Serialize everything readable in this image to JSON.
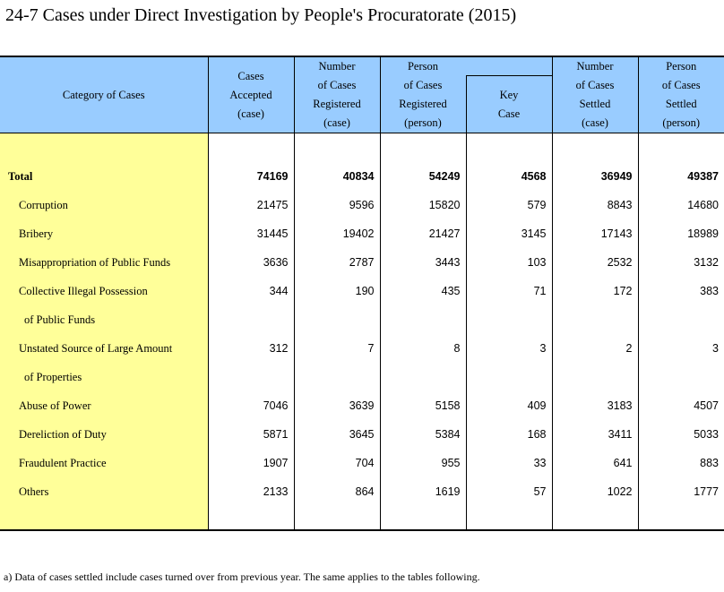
{
  "title": "24-7  Cases under Direct Investigation by People's Procuratorate (2015)",
  "header": {
    "category": "Category of Cases",
    "cases_accepted": [
      "Cases",
      "Accepted",
      "(case)"
    ],
    "cases_registered": [
      "Number",
      "of Cases",
      "Registered",
      "(case)"
    ],
    "persons_registered": [
      "Person",
      "of Cases",
      "Registered",
      "(person)"
    ],
    "key_case": [
      "Key",
      "Case"
    ],
    "cases_settled": [
      "Number",
      "of Cases",
      "Settled",
      "(case)"
    ],
    "persons_settled": [
      "Person",
      "of Cases",
      "Settled",
      "(person)"
    ]
  },
  "rows": [
    {
      "label": "Total",
      "values": [
        "74169",
        "40834",
        "54249",
        "4568",
        "36949",
        "49387"
      ]
    },
    {
      "label": "Corruption",
      "values": [
        "21475",
        "9596",
        "15820",
        "579",
        "8843",
        "14680"
      ]
    },
    {
      "label": "Bribery",
      "values": [
        "31445",
        "19402",
        "21427",
        "3145",
        "17143",
        "18989"
      ]
    },
    {
      "label": "Misappropriation of Public Funds",
      "values": [
        "3636",
        "2787",
        "3443",
        "103",
        "2532",
        "3132"
      ]
    },
    {
      "label": "Collective Illegal Possession",
      "label2": "of Public Funds",
      "values": [
        "344",
        "190",
        "435",
        "71",
        "172",
        "383"
      ]
    },
    {
      "label": "Unstated Source of Large Amount",
      "label2": "of Properties",
      "values": [
        "312",
        "7",
        "8",
        "3",
        "2",
        "3"
      ]
    },
    {
      "label": "Abuse of Power",
      "values": [
        "7046",
        "3639",
        "5158",
        "409",
        "3183",
        "4507"
      ]
    },
    {
      "label": "Dereliction of Duty",
      "values": [
        "5871",
        "3645",
        "5384",
        "168",
        "3411",
        "5033"
      ]
    },
    {
      "label": "Fraudulent Practice",
      "values": [
        "1907",
        "704",
        "955",
        "33",
        "641",
        "883"
      ]
    },
    {
      "label": "Others",
      "values": [
        "2133",
        "864",
        "1619",
        "57",
        "1022",
        "1777"
      ]
    }
  ],
  "footnote": "a) Data of cases settled include cases turned over from previous year. The same applies to the tables following.",
  "colors": {
    "header_bg": "#99ccff",
    "category_bg": "#ffff99"
  }
}
